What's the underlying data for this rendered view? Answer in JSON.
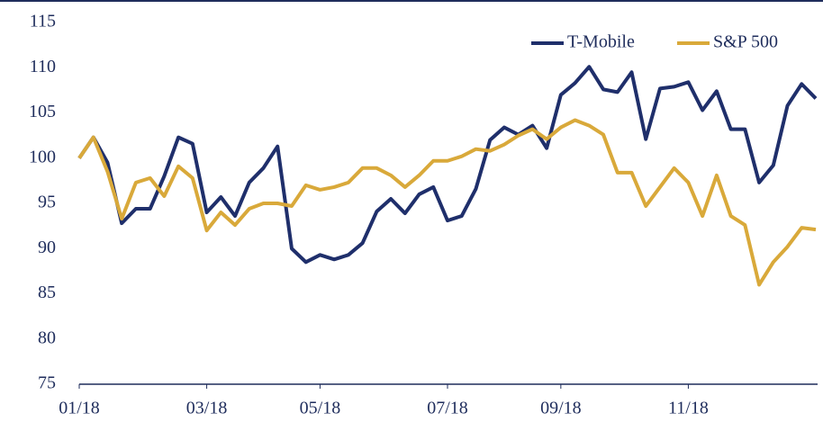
{
  "chart_data": {
    "type": "line",
    "categories": [
      "01/18",
      null,
      null,
      null,
      null,
      null,
      null,
      null,
      null,
      "03/18",
      null,
      null,
      null,
      null,
      null,
      null,
      null,
      "05/18",
      null,
      null,
      null,
      null,
      null,
      null,
      null,
      null,
      "07/18",
      null,
      null,
      null,
      null,
      null,
      null,
      null,
      "09/18",
      null,
      null,
      null,
      null,
      null,
      null,
      null,
      null,
      "11/18",
      null,
      null,
      null,
      null,
      null,
      null,
      null,
      null,
      null
    ],
    "series": [
      {
        "name": "T-Mobile",
        "color": "#1f2f6b",
        "values": [
          100,
          102.3,
          99.5,
          92.8,
          94.4,
          94.4,
          98,
          102.3,
          101.6,
          94,
          95.7,
          93.6,
          97.3,
          98.9,
          101.3,
          90,
          88.5,
          89.3,
          88.8,
          89.3,
          90.6,
          94.1,
          95.5,
          93.9,
          96,
          96.8,
          93.1,
          93.6,
          96.6,
          102,
          103.4,
          102.6,
          103.6,
          101.1,
          107,
          108.3,
          110.1,
          107.6,
          107.3,
          109.5,
          102.1,
          107.7,
          107.9,
          108.4,
          105.3,
          107.4,
          103.2,
          103.2,
          97.3,
          99.2,
          105.8,
          108.2,
          106.6
        ]
      },
      {
        "name": "S&P 500",
        "color": "#d9a93a",
        "values": [
          100,
          102.3,
          98.5,
          93.3,
          97.3,
          97.8,
          95.8,
          99.1,
          97.8,
          92,
          94,
          92.6,
          94.4,
          95,
          95,
          94.7,
          97,
          96.5,
          96.8,
          97.3,
          98.9,
          98.9,
          98.1,
          96.8,
          98.1,
          99.7,
          99.7,
          100.2,
          101,
          100.8,
          101.5,
          102.5,
          103.2,
          102.1,
          103.4,
          104.2,
          103.6,
          102.6,
          98.4,
          98.4,
          94.7,
          96.8,
          98.9,
          97.3,
          93.6,
          98.1,
          93.6,
          92.6,
          86,
          88.5,
          90.2,
          92.3,
          92.1
        ]
      }
    ],
    "ylim": [
      75,
      115
    ],
    "yticks": [
      75,
      80,
      85,
      90,
      95,
      100,
      105,
      110,
      115
    ],
    "grid": false,
    "legend": "top-right"
  }
}
